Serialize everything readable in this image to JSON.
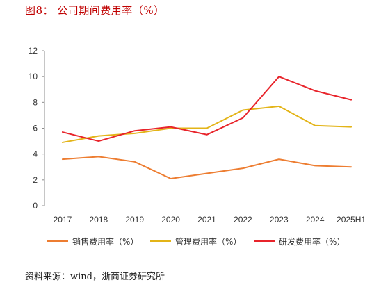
{
  "figure": {
    "title": "图8： 公司期间费用率（%）",
    "source": "资料来源：wind，浙商证券研究所"
  },
  "chart_data": {
    "type": "line",
    "x": [
      "2017",
      "2018",
      "2019",
      "2020",
      "2021",
      "2022",
      "2023",
      "2024",
      "2025H1"
    ],
    "ylim": [
      0,
      12
    ],
    "yticks": [
      0,
      2,
      4,
      6,
      8,
      10,
      12
    ],
    "grid": false,
    "legend_position": "bottom",
    "series": [
      {
        "name": "销售费用率（%）",
        "color": "#ED7D31",
        "values": [
          3.6,
          3.8,
          3.4,
          2.1,
          2.5,
          2.9,
          3.6,
          3.1,
          3.0
        ]
      },
      {
        "name": "管理费用率（%）",
        "color": "#E3B418",
        "values": [
          4.9,
          5.4,
          5.6,
          6.0,
          6.0,
          7.4,
          7.7,
          6.2,
          6.1
        ]
      },
      {
        "name": "研发费用率（%）",
        "color": "#E8242B",
        "values": [
          5.7,
          5.0,
          5.8,
          6.1,
          5.5,
          6.8,
          10.0,
          8.9,
          8.2
        ]
      }
    ]
  }
}
